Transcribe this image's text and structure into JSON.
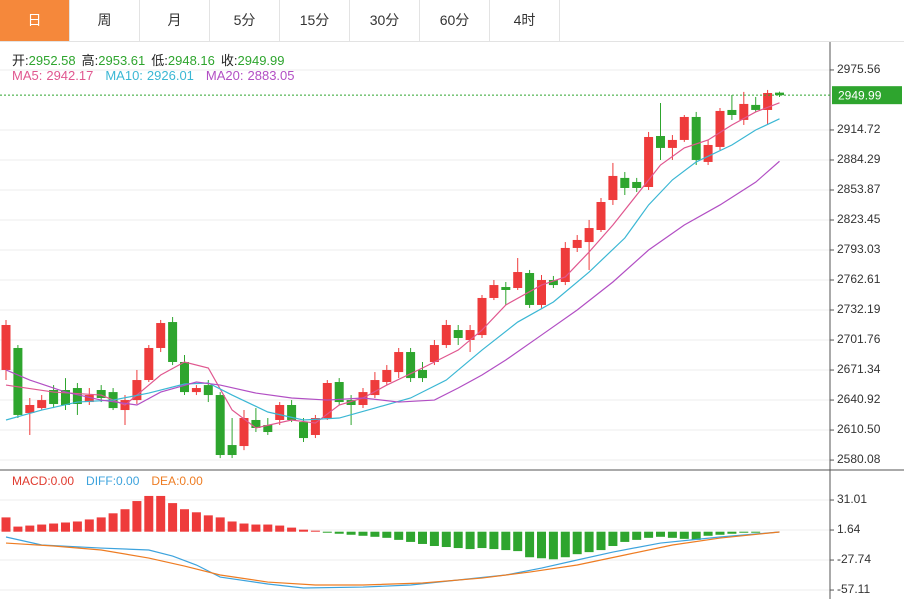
{
  "tabs": [
    "日",
    "周",
    "月",
    "5分",
    "15分",
    "30分",
    "60分",
    "4时"
  ],
  "active_tab": 0,
  "chart_data": [
    {
      "type": "candlestick",
      "up_color": "#ee3b3b",
      "down_color": "#2ea52e",
      "info": [
        {
          "label": "开:",
          "value": 2952.58
        },
        {
          "label": "高:",
          "value": 2953.61
        },
        {
          "label": "低:",
          "value": 2948.16
        },
        {
          "label": "收:",
          "value": 2949.99
        }
      ],
      "last": 2949.99,
      "ylim": [
        2570.0,
        3003.9
      ],
      "yticks": [
        2975.56,
        2914.72,
        2884.29,
        2853.87,
        2823.45,
        2793.03,
        2762.61,
        2732.19,
        2701.76,
        2671.34,
        2640.92,
        {
          "value": 2610.5,
          "label": "2610.50"
        },
        2580.08
      ],
      "candles": [
        [
          2671.4,
          2722.1,
          2661.2,
          2717.0
        ],
        [
          2693.7,
          2696.7,
          2622.7,
          2625.8
        ],
        [
          2627.8,
          2643.0,
          2605.5,
          2635.9
        ],
        [
          2632.8,
          2646.0,
          2630.8,
          2640.9
        ],
        [
          2651.1,
          2656.1,
          2632.8,
          2636.9
        ],
        [
          2651.1,
          2663.2,
          2630.8,
          2635.9
        ],
        [
          2653.1,
          2658.2,
          2625.8,
          2636.9
        ],
        [
          2638.9,
          2653.1,
          2635.9,
          2646.0
        ],
        [
          2651.1,
          2656.1,
          2638.9,
          2643.0
        ],
        [
          2649.0,
          2653.1,
          2630.8,
          2632.8
        ],
        [
          2630.8,
          2646.0,
          2615.6,
          2640.9
        ],
        [
          2640.9,
          2671.4,
          2636.9,
          2661.2
        ],
        [
          2661.2,
          2696.7,
          2659.2,
          2693.7
        ],
        [
          2693.7,
          2722.1,
          2689.6,
          2719.0
        ],
        [
          2720.0,
          2725.1,
          2676.4,
          2679.5
        ],
        [
          2679.5,
          2686.6,
          2646.0,
          2649.0
        ],
        [
          2649.0,
          2656.1,
          2646.0,
          2653.1
        ],
        [
          2656.1,
          2661.2,
          2638.9,
          2646.0
        ],
        [
          2646.0,
          2649.0,
          2582.1,
          2585.2
        ],
        [
          2595.3,
          2622.7,
          2582.1,
          2585.2
        ],
        [
          2594.3,
          2630.8,
          2590.2,
          2622.7
        ],
        [
          2620.7,
          2632.8,
          2608.5,
          2612.6
        ],
        [
          2615.6,
          2622.7,
          2605.5,
          2608.5
        ],
        [
          2620.7,
          2638.9,
          2615.6,
          2635.9
        ],
        [
          2635.9,
          2640.9,
          2618.6,
          2620.7
        ],
        [
          2618.6,
          2622.7,
          2598.4,
          2602.4
        ],
        [
          2605.5,
          2625.8,
          2602.4,
          2622.7
        ],
        [
          2622.7,
          2661.2,
          2620.7,
          2658.2
        ],
        [
          2659.2,
          2663.2,
          2635.9,
          2638.9
        ],
        [
          2640.9,
          2646.0,
          2615.6,
          2635.9
        ],
        [
          2635.9,
          2653.1,
          2632.8,
          2649.0
        ],
        [
          2646.0,
          2669.3,
          2643.0,
          2661.2
        ],
        [
          2659.2,
          2676.4,
          2656.1,
          2671.4
        ],
        [
          2669.3,
          2693.7,
          2663.2,
          2689.6
        ],
        [
          2689.6,
          2693.7,
          2659.2,
          2663.2
        ],
        [
          2671.4,
          2679.5,
          2659.2,
          2663.2
        ],
        [
          2679.5,
          2701.8,
          2676.4,
          2696.7
        ],
        [
          2696.7,
          2722.1,
          2693.7,
          2717.0
        ],
        [
          2711.9,
          2717.0,
          2696.7,
          2703.8
        ],
        [
          2701.8,
          2717.0,
          2689.6,
          2711.9
        ],
        [
          2706.8,
          2747.4,
          2703.8,
          2744.4
        ],
        [
          2744.4,
          2762.6,
          2742.3,
          2757.5
        ],
        [
          2755.5,
          2760.6,
          2737.3,
          2752.5
        ],
        [
          2754.5,
          2784.9,
          2752.5,
          2770.7
        ],
        [
          2769.7,
          2772.8,
          2734.3,
          2737.3
        ],
        [
          2737.3,
          2767.7,
          2734.3,
          2762.6
        ],
        [
          2762.6,
          2766.7,
          2754.5,
          2757.5
        ],
        [
          2760.6,
          2801.1,
          2757.5,
          2795.1
        ],
        [
          2795.1,
          2808.2,
          2791.0,
          2803.2
        ],
        [
          2801.1,
          2823.5,
          2772.8,
          2815.3
        ],
        [
          2813.3,
          2845.8,
          2811.3,
          2841.7
        ],
        [
          2843.7,
          2881.3,
          2838.7,
          2868.1
        ],
        [
          2866.1,
          2872.1,
          2848.8,
          2855.9
        ],
        [
          2862.0,
          2866.1,
          2851.8,
          2855.9
        ],
        [
          2856.9,
          2912.7,
          2853.9,
          2907.6
        ],
        [
          2908.6,
          2942.1,
          2884.3,
          2896.5
        ],
        [
          2896.5,
          2909.6,
          2884.3,
          2904.6
        ],
        [
          2904.6,
          2929.9,
          2902.6,
          2927.9
        ],
        [
          2927.9,
          2933.0,
          2879.2,
          2884.3
        ],
        [
          2882.3,
          2904.6,
          2879.2,
          2899.5
        ],
        [
          2897.5,
          2937.0,
          2894.4,
          2934.0
        ],
        [
          2935.0,
          2950.2,
          2924.9,
          2929.9
        ],
        [
          2924.9,
          2953.3,
          2919.8,
          2941.1
        ],
        [
          2940.1,
          2948.2,
          2933.0,
          2935.0
        ],
        [
          2935.0,
          2955.3,
          2919.8,
          2952.2
        ],
        [
          2952.58,
          2953.61,
          2948.16,
          2949.99
        ]
      ],
      "series": [
        {
          "name": "MA5:",
          "last": 2942.17,
          "color": "#e0578f",
          "x": [
            0,
            4,
            8,
            10,
            12,
            13,
            15,
            17,
            19,
            21,
            24,
            26,
            28,
            30,
            32,
            35,
            38,
            40,
            42,
            45,
            47,
            49,
            51,
            53,
            55,
            57,
            59,
            61,
            63,
            65
          ],
          "values": [
            2656.1,
            2649.0,
            2646.0,
            2635.9,
            2656.1,
            2666.3,
            2679.5,
            2673.4,
            2630.8,
            2612.6,
            2620.7,
            2617.6,
            2635.9,
            2643.0,
            2656.1,
            2673.4,
            2691.6,
            2711.9,
            2737.3,
            2757.5,
            2765.7,
            2791.0,
            2818.4,
            2848.8,
            2879.2,
            2896.5,
            2904.6,
            2919.8,
            2933.0,
            2942.2
          ]
        },
        {
          "name": "MA10:",
          "last": 2926.01,
          "color": "#3bb7d4",
          "x": [
            0,
            3,
            6,
            9,
            12,
            15,
            17,
            19,
            22,
            25,
            28,
            31,
            34,
            37,
            40,
            43,
            46,
            49,
            52,
            54,
            56,
            58,
            61,
            63,
            65
          ],
          "values": [
            2620.7,
            2630.8,
            2638.9,
            2640.9,
            2648.0,
            2657.2,
            2658.2,
            2646.0,
            2628.8,
            2620.7,
            2622.7,
            2632.8,
            2643.0,
            2661.2,
            2691.6,
            2720.0,
            2740.3,
            2770.7,
            2805.2,
            2838.7,
            2864.1,
            2882.3,
            2899.5,
            2914.7,
            2926.0
          ]
        },
        {
          "name": "MA20:",
          "last": 2883.05,
          "color": "#b24fc4",
          "x": [
            0,
            2,
            5,
            8,
            11,
            13,
            16,
            18,
            21,
            24,
            27,
            30,
            33,
            36,
            38,
            40,
            42,
            45,
            48,
            51,
            54,
            57,
            60,
            63,
            65
          ],
          "values": [
            2671.4,
            2661.2,
            2649.0,
            2640.9,
            2635.9,
            2649.0,
            2659.2,
            2656.1,
            2648.0,
            2643.0,
            2640.9,
            2643.0,
            2638.9,
            2640.9,
            2653.1,
            2666.3,
            2681.5,
            2706.8,
            2732.2,
            2760.6,
            2793.0,
            2818.4,
            2838.7,
            2861.8,
            2883.0
          ]
        }
      ]
    },
    {
      "type": "macd",
      "ylim": [
        -64.9,
        60.4
      ],
      "yticks": [
        31.01,
        1.64,
        -27.74,
        -57.11
      ],
      "info": [
        {
          "label": "MACD:",
          "value": 0,
          "value_label": "0.00",
          "color": "#e03a2e"
        },
        {
          "label": "DIFF:",
          "value": 0,
          "value_label": "0.00",
          "color": "#3da3dd"
        },
        {
          "label": "DEA:",
          "value": 0,
          "value_label": "0.00",
          "color": "#ee7c22"
        }
      ],
      "histogram": [
        14,
        5,
        6,
        7,
        8,
        9,
        10,
        12,
        14,
        18,
        22,
        30,
        35,
        35,
        28,
        22,
        19,
        16,
        14,
        10,
        8,
        7,
        7,
        6,
        4,
        2,
        1,
        -1,
        -2,
        -3,
        -4,
        -5,
        -6,
        -8,
        -10,
        -12,
        -14,
        -15,
        -16,
        -17,
        -16,
        -17,
        -18,
        -19,
        -25,
        -26,
        -27,
        -25,
        -22,
        -20,
        -18,
        -14,
        -10,
        -8,
        -6,
        -5,
        -6,
        -7,
        -8,
        -4,
        -3,
        -2,
        -1,
        -1,
        0,
        0
      ],
      "series": [
        {
          "name": "DIFF",
          "color": "#3da3dd",
          "x": [
            0,
            3,
            8,
            12,
            14,
            16,
            18,
            22,
            25,
            30,
            34,
            38,
            42,
            45,
            48,
            51,
            55,
            60,
            65
          ],
          "values": [
            -5.2,
            -13.0,
            -16.0,
            -17.9,
            -23.8,
            -32.6,
            -44.4,
            -51.2,
            -55.1,
            -54.2,
            -52.2,
            -47.3,
            -42.4,
            -35.6,
            -27.7,
            -19.9,
            -11.1,
            -5.2,
            -0.3
          ]
        },
        {
          "name": "DEA",
          "color": "#ee7c22",
          "x": [
            0,
            4,
            8,
            12,
            15,
            18,
            22,
            26,
            30,
            35,
            40,
            44,
            48,
            52,
            56,
            60,
            65
          ],
          "values": [
            -11.1,
            -14.0,
            -17.9,
            -25.8,
            -33.6,
            -42.4,
            -49.3,
            -52.2,
            -52.2,
            -50.2,
            -45.4,
            -39.5,
            -32.6,
            -22.8,
            -13.0,
            -6.2,
            -0.3
          ]
        }
      ]
    }
  ]
}
